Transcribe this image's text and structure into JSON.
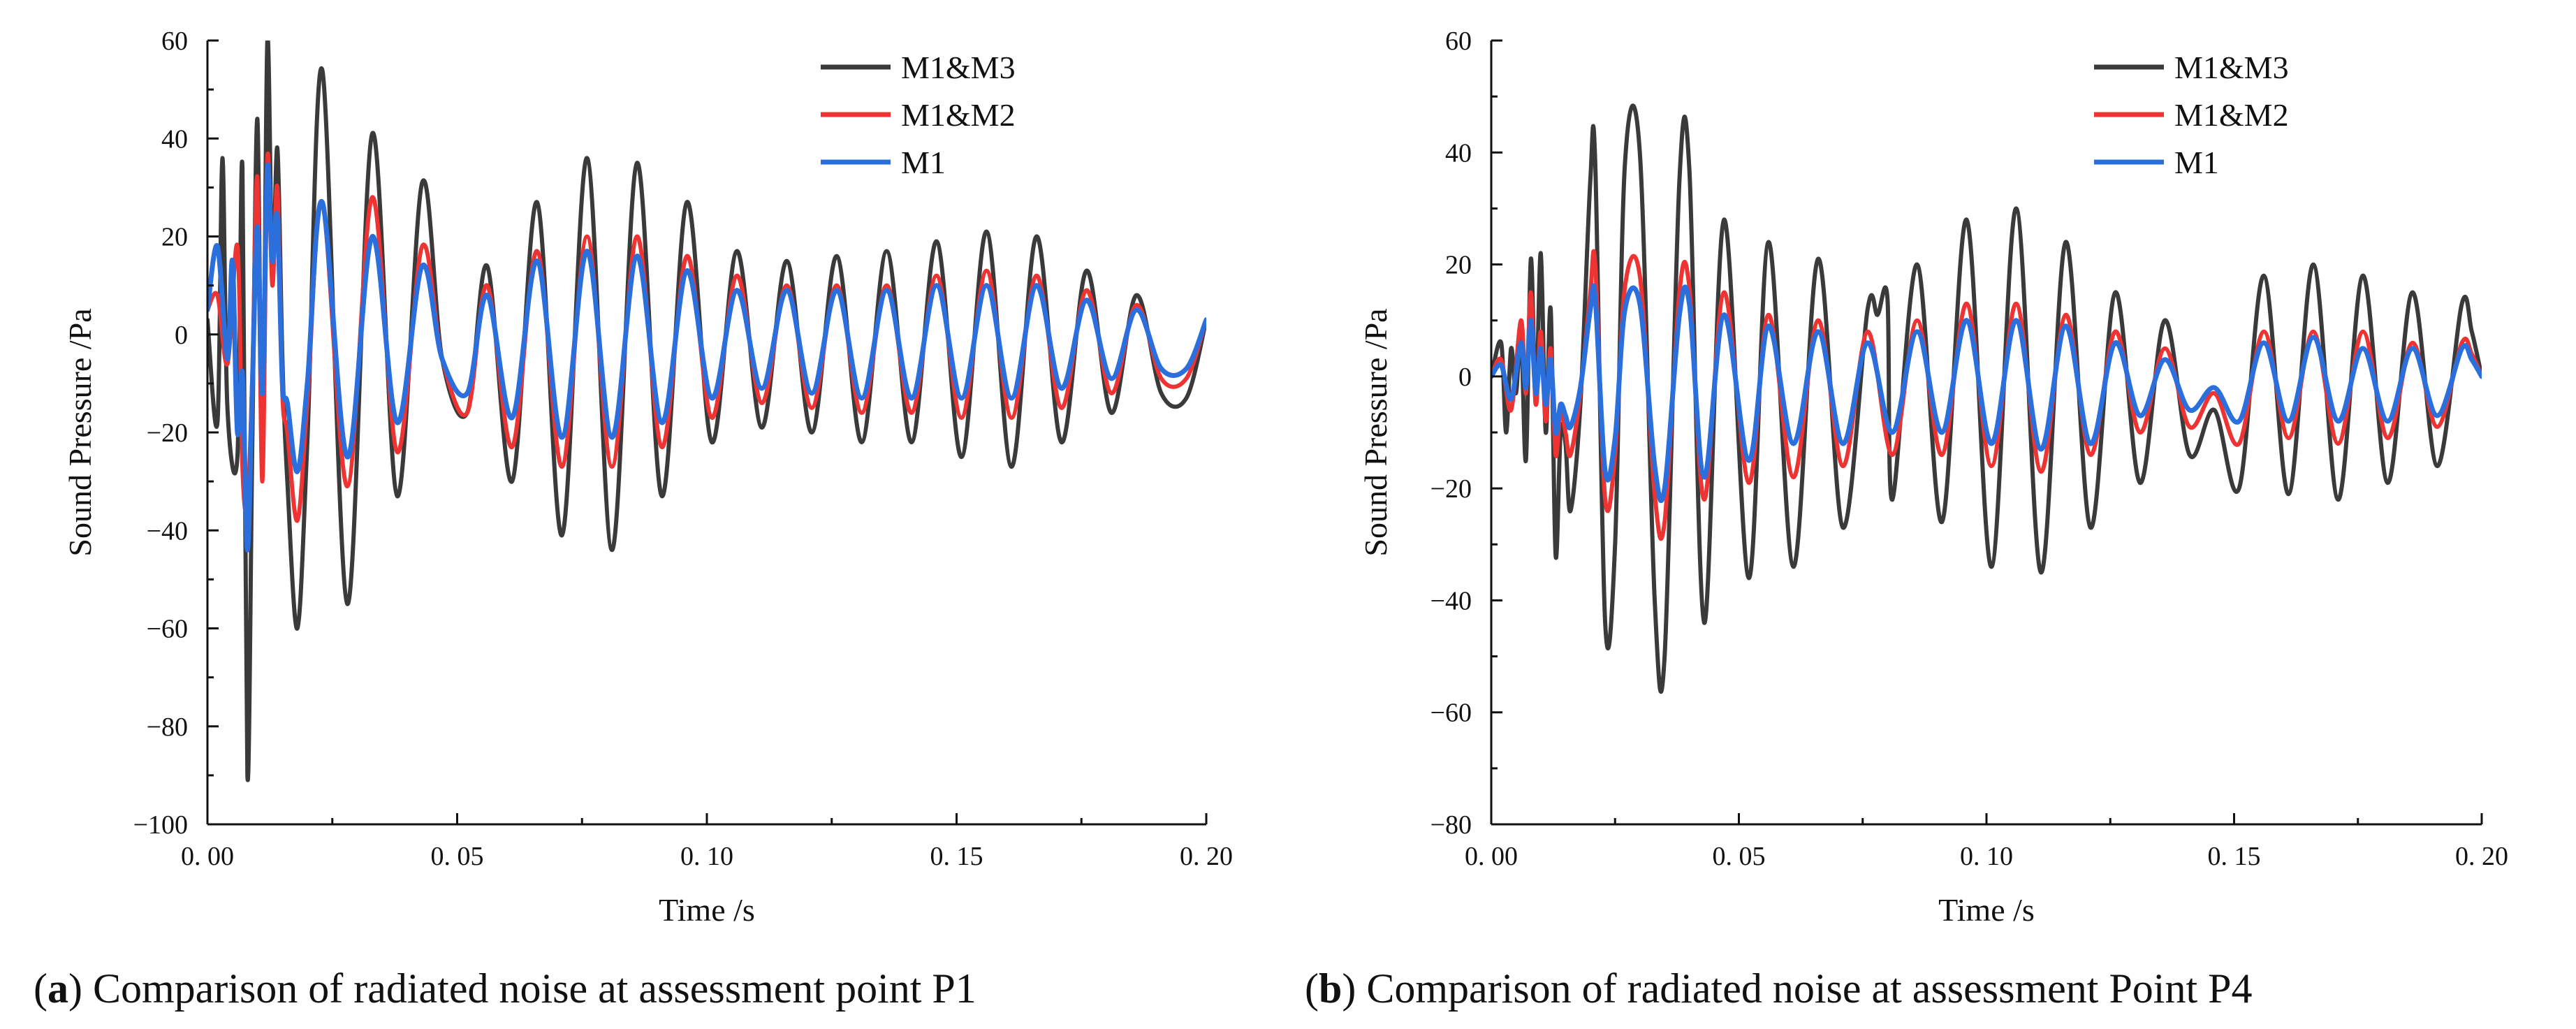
{
  "colors": {
    "M1&M3": "#3a3a3a",
    "M1&M2": "#ee3333",
    "M1": "#2a6fdb",
    "axis": "#111111"
  },
  "chart_data": [
    {
      "panel": "a",
      "type": "line",
      "caption_label": "a",
      "caption_text": " Comparison of radiated noise at assessment point P1",
      "title": "",
      "xlabel": "Time /s",
      "ylabel": "Sound Pressure /Pa",
      "xlim": [
        0,
        0.2
      ],
      "ylim": [
        -100,
        60
      ],
      "x_ticks": [
        "0. 00",
        "0. 05",
        "0. 10",
        "0. 15",
        "0. 20"
      ],
      "y_ticks": [
        "60",
        "40",
        "20",
        "0",
        "−20",
        "−40",
        "−60",
        "−80",
        "−100"
      ],
      "legend": [
        "M1&M3",
        "M1&M2",
        "M1"
      ],
      "legend_position": "top-right",
      "series": [
        {
          "name": "M1&M3",
          "x": [
            0,
            0.002,
            0.003,
            0.004,
            0.006,
            0.007,
            0.008,
            0.009,
            0.01,
            0.011,
            0.012,
            0.013,
            0.014,
            0.015,
            0.016,
            0.018,
            0.02,
            0.023,
            0.028,
            0.033,
            0.038,
            0.043,
            0.047,
            0.052,
            0.056,
            0.061,
            0.066,
            0.071,
            0.076,
            0.081,
            0.086,
            0.091,
            0.096,
            0.101,
            0.106,
            0.111,
            0.116,
            0.121,
            0.126,
            0.131,
            0.136,
            0.141,
            0.146,
            0.151,
            0.156,
            0.161,
            0.166,
            0.171,
            0.176,
            0.181,
            0.186,
            0.191,
            0.196,
            0.2
          ],
          "values": [
            3,
            -18,
            36,
            -15,
            -25,
            34,
            -90,
            -20,
            44,
            -28,
            60,
            12,
            38,
            -5,
            -30,
            -60,
            -22,
            54,
            -55,
            41,
            -33,
            31,
            -5,
            -16,
            14,
            -30,
            27,
            -41,
            36,
            -44,
            35,
            -33,
            27,
            -22,
            17,
            -19,
            15,
            -20,
            16,
            -22,
            17,
            -22,
            19,
            -25,
            21,
            -27,
            20,
            -22,
            13,
            -16,
            8,
            -12,
            -13,
            3
          ]
        },
        {
          "name": "M1&M2",
          "x": [
            0,
            0.002,
            0.004,
            0.006,
            0.007,
            0.008,
            0.009,
            0.01,
            0.011,
            0.012,
            0.013,
            0.014,
            0.015,
            0.016,
            0.018,
            0.02,
            0.023,
            0.028,
            0.033,
            0.038,
            0.043,
            0.047,
            0.052,
            0.056,
            0.061,
            0.066,
            0.071,
            0.076,
            0.081,
            0.086,
            0.091,
            0.096,
            0.101,
            0.106,
            0.111,
            0.116,
            0.121,
            0.126,
            0.131,
            0.136,
            0.141,
            0.146,
            0.151,
            0.156,
            0.161,
            0.166,
            0.171,
            0.176,
            0.181,
            0.186,
            0.191,
            0.196,
            0.2
          ],
          "values": [
            5,
            8,
            -6,
            18,
            -27,
            -35,
            -8,
            32,
            -30,
            36,
            10,
            30,
            -12,
            -20,
            -38,
            -14,
            27,
            -31,
            28,
            -24,
            18,
            -5,
            -16,
            10,
            -23,
            17,
            -27,
            20,
            -27,
            20,
            -23,
            16,
            -17,
            12,
            -14,
            10,
            -15,
            10,
            -16,
            10,
            -16,
            12,
            -17,
            13,
            -17,
            12,
            -15,
            9,
            -12,
            6,
            -9,
            -9,
            3
          ]
        },
        {
          "name": "M1",
          "x": [
            0,
            0.002,
            0.004,
            0.005,
            0.006,
            0.007,
            0.008,
            0.009,
            0.01,
            0.011,
            0.012,
            0.013,
            0.014,
            0.015,
            0.016,
            0.018,
            0.02,
            0.023,
            0.028,
            0.033,
            0.038,
            0.043,
            0.047,
            0.052,
            0.056,
            0.061,
            0.066,
            0.071,
            0.076,
            0.081,
            0.086,
            0.091,
            0.096,
            0.101,
            0.106,
            0.111,
            0.116,
            0.121,
            0.126,
            0.131,
            0.136,
            0.141,
            0.146,
            0.151,
            0.156,
            0.161,
            0.166,
            0.171,
            0.176,
            0.181,
            0.186,
            0.191,
            0.196,
            0.2
          ],
          "values": [
            5,
            18,
            -5,
            15,
            -20,
            -8,
            -44,
            -10,
            22,
            -12,
            34,
            15,
            24,
            -10,
            -14,
            -28,
            -10,
            27,
            -25,
            20,
            -18,
            14,
            -5,
            -12,
            8,
            -17,
            15,
            -21,
            17,
            -21,
            16,
            -18,
            13,
            -13,
            9,
            -11,
            9,
            -12,
            9,
            -13,
            9,
            -13,
            10,
            -13,
            10,
            -13,
            10,
            -11,
            7,
            -9,
            5,
            -7,
            -7,
            3
          ]
        }
      ]
    },
    {
      "panel": "b",
      "type": "line",
      "caption_label": "b",
      "caption_text": " Comparison of radiated noise at assessment Point P4",
      "title": "",
      "xlabel": "Time /s",
      "ylabel": "Sound Pressure /Pa",
      "xlim": [
        0,
        0.2
      ],
      "ylim": [
        -80,
        60
      ],
      "x_ticks": [
        "0. 00",
        "0. 05",
        "0. 10",
        "0. 15",
        "0. 20"
      ],
      "y_ticks": [
        "60",
        "40",
        "20",
        "0",
        "−20",
        "−40",
        "−60",
        "−80"
      ],
      "legend": [
        "M1&M3",
        "M1&M2",
        "M1"
      ],
      "legend_position": "top-right",
      "series": [
        {
          "name": "M1&M3",
          "x": [
            0,
            0.002,
            0.003,
            0.004,
            0.005,
            0.006,
            0.007,
            0.008,
            0.009,
            0.01,
            0.011,
            0.012,
            0.013,
            0.014,
            0.015,
            0.016,
            0.018,
            0.02,
            0.021,
            0.023,
            0.025,
            0.027,
            0.03,
            0.033,
            0.035,
            0.038,
            0.04,
            0.043,
            0.047,
            0.052,
            0.056,
            0.061,
            0.066,
            0.071,
            0.076,
            0.078,
            0.08,
            0.081,
            0.086,
            0.091,
            0.096,
            0.101,
            0.106,
            0.111,
            0.116,
            0.121,
            0.126,
            0.131,
            0.136,
            0.141,
            0.146,
            0.151,
            0.156,
            0.161,
            0.166,
            0.171,
            0.176,
            0.181,
            0.186,
            0.191,
            0.196,
            0.198,
            0.2
          ],
          "values": [
            0,
            6,
            -10,
            5,
            -3,
            8,
            -15,
            21,
            -5,
            22,
            -10,
            12,
            -32,
            -10,
            -12,
            -24,
            -5,
            35,
            38,
            -44,
            -30,
            38,
            40,
            -40,
            -50,
            35,
            37,
            -44,
            28,
            -36,
            24,
            -34,
            21,
            -27,
            12,
            11,
            14,
            -22,
            20,
            -26,
            28,
            -34,
            30,
            -35,
            24,
            -27,
            15,
            -19,
            10,
            -14,
            -6,
            -20,
            18,
            -21,
            20,
            -22,
            18,
            -19,
            15,
            -16,
            13,
            8,
            0
          ]
        },
        {
          "name": "M1&M2",
          "x": [
            0,
            0.002,
            0.004,
            0.006,
            0.007,
            0.008,
            0.009,
            0.01,
            0.011,
            0.012,
            0.013,
            0.014,
            0.015,
            0.016,
            0.018,
            0.02,
            0.021,
            0.023,
            0.025,
            0.027,
            0.03,
            0.033,
            0.035,
            0.038,
            0.04,
            0.043,
            0.047,
            0.052,
            0.056,
            0.061,
            0.066,
            0.071,
            0.076,
            0.081,
            0.086,
            0.091,
            0.096,
            0.101,
            0.106,
            0.111,
            0.116,
            0.121,
            0.126,
            0.131,
            0.136,
            0.141,
            0.146,
            0.151,
            0.156,
            0.161,
            0.166,
            0.171,
            0.176,
            0.181,
            0.186,
            0.191,
            0.196,
            0.198,
            0.2
          ],
          "values": [
            0,
            3,
            -6,
            10,
            -3,
            15,
            -5,
            8,
            -8,
            5,
            -14,
            -6,
            -10,
            -14,
            -3,
            15,
            20,
            -22,
            -14,
            16,
            18,
            -21,
            -26,
            15,
            16,
            -22,
            15,
            -19,
            11,
            -18,
            10,
            -16,
            8,
            -14,
            10,
            -14,
            13,
            -16,
            13,
            -17,
            11,
            -14,
            8,
            -10,
            5,
            -9,
            -3,
            -12,
            8,
            -11,
            8,
            -12,
            8,
            -11,
            6,
            -9,
            6,
            4,
            0
          ]
        },
        {
          "name": "M1",
          "x": [
            0,
            0.002,
            0.004,
            0.006,
            0.007,
            0.008,
            0.009,
            0.01,
            0.011,
            0.012,
            0.013,
            0.014,
            0.015,
            0.016,
            0.018,
            0.02,
            0.021,
            0.023,
            0.025,
            0.027,
            0.03,
            0.033,
            0.035,
            0.038,
            0.04,
            0.043,
            0.047,
            0.052,
            0.056,
            0.061,
            0.066,
            0.071,
            0.076,
            0.081,
            0.086,
            0.091,
            0.096,
            0.101,
            0.106,
            0.111,
            0.116,
            0.121,
            0.126,
            0.131,
            0.136,
            0.141,
            0.146,
            0.151,
            0.156,
            0.161,
            0.166,
            0.171,
            0.176,
            0.181,
            0.186,
            0.191,
            0.196,
            0.198,
            0.2
          ],
          "values": [
            0,
            2,
            -4,
            6,
            -2,
            10,
            -3,
            5,
            -5,
            3,
            -10,
            -5,
            -7,
            -9,
            -2,
            12,
            14,
            -17,
            -11,
            12,
            13,
            -16,
            -20,
            11,
            13,
            -18,
            11,
            -15,
            9,
            -12,
            8,
            -12,
            6,
            -10,
            8,
            -10,
            10,
            -12,
            10,
            -13,
            9,
            -12,
            6,
            -7,
            3,
            -6,
            -2,
            -8,
            6,
            -8,
            7,
            -8,
            5,
            -8,
            5,
            -7,
            5,
            3,
            0
          ]
        }
      ]
    }
  ]
}
